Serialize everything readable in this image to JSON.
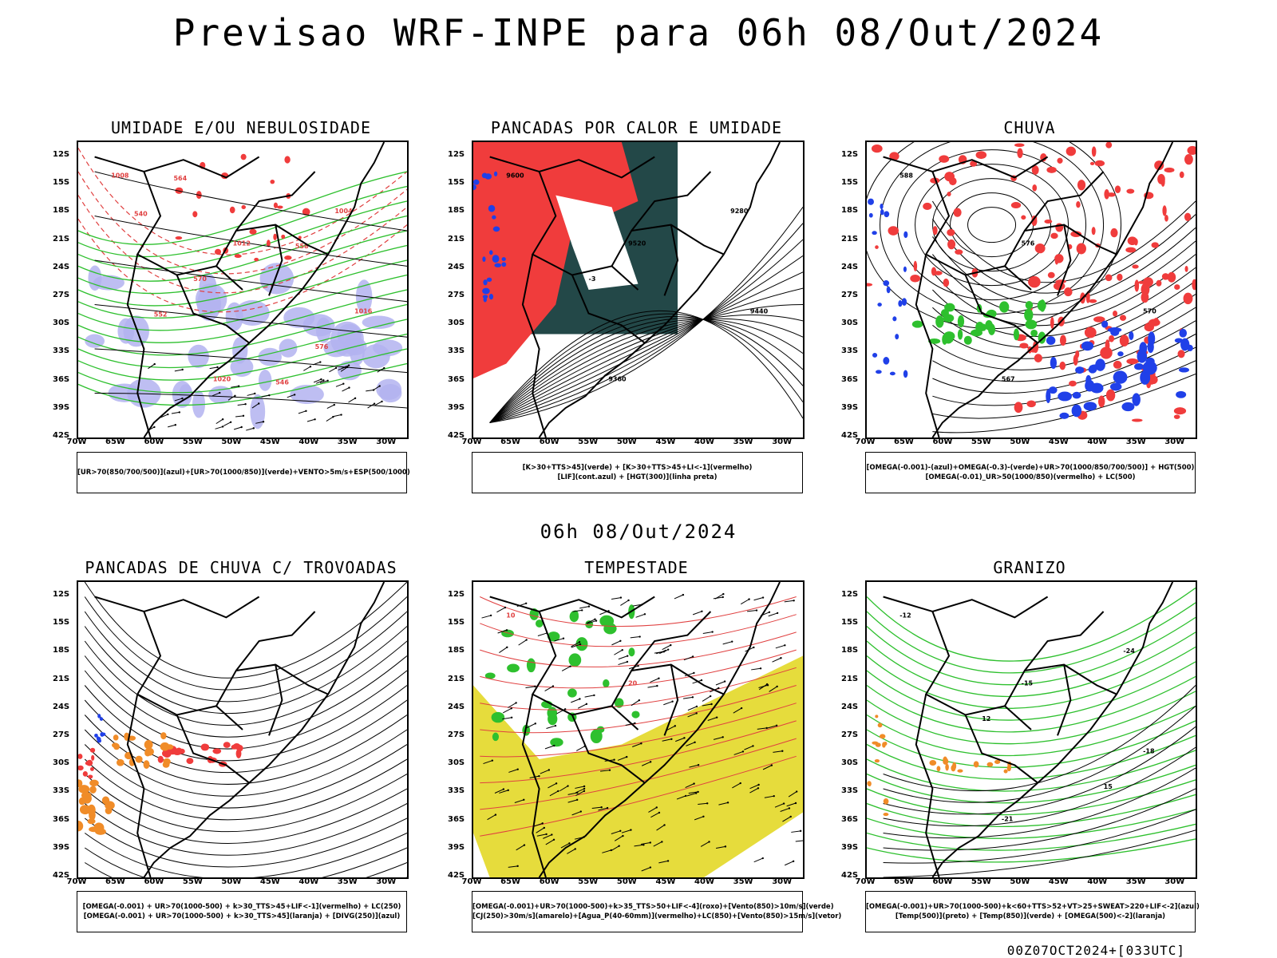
{
  "header": {
    "title": "Previsao WRF-INPE  para 06h 08/Out/2024",
    "mid_title": "06h 08/Out/2024"
  },
  "axes": {
    "lat_labels": [
      "12S",
      "15S",
      "18S",
      "21S",
      "24S",
      "27S",
      "30S",
      "33S",
      "36S",
      "39S",
      "42S"
    ],
    "lon_labels": [
      "70W",
      "65W",
      "60W",
      "55W",
      "50W",
      "45W",
      "40W",
      "35W",
      "30W"
    ]
  },
  "panels": [
    {
      "title": "UMIDADE E/OU NEBULOSIDADE",
      "legend": [
        "[UR>70(850/700/500)](azul)+[UR>70(1000/850)](verde)+VENTO>5m/s+ESP(500/1000)"
      ],
      "contour_labels": [
        "1008",
        "1012",
        "1016",
        "1020",
        "1004",
        "570",
        "576",
        "564",
        "558",
        "552",
        "546",
        "540"
      ]
    },
    {
      "title": "PANCADAS POR CALOR E UMIDADE",
      "legend": [
        "[K>30+TTS>45](verde) + [K>30+TTS>45+LI<-1](vermelho)",
        "[LIF](cont.azul) + [HGT(300)](linha preta)"
      ],
      "contour_labels": [
        "9600",
        "9520",
        "9440",
        "9360",
        "9280",
        "-3"
      ]
    },
    {
      "title": "CHUVA",
      "legend": [
        "[OMEGA(-0.001)-(azul)+OMEGA(-0.3)-(verde)+UR>70(1000/850/700/500)] + HGT(500)",
        "[OMEGA(-0.01)_UR>50(1000/850)(vermelho) + LC(500)"
      ],
      "contour_labels": [
        "588",
        "576",
        "570",
        "567"
      ]
    },
    {
      "title": "PANCADAS DE CHUVA C/ TROVOADAS",
      "legend": [
        "[OMEGA(-0.001) + UR>70(1000-500) + k>30_TTS>45+LIF<-1](vermelho) + LC(250)",
        "[OMEGA(-0.001) + UR>70(1000-500) + k>30_TTS>45](laranja) + [DIVG(250)](azul)"
      ],
      "contour_labels": []
    },
    {
      "title": "TEMPESTADE",
      "legend": [
        "[OMEGA(-0.001)+UR>70(1000-500)+k>35_TTS>50+LIF<-4](roxo)+[Vento(850)>10m/s](verde)",
        "[CJ(250)>30m/s](amarelo)+[Agua_P(40-60mm)](vermelho)+LC(850)+[Vento(850)>15m/s](vetor)"
      ],
      "contour_labels": [
        "10",
        "20"
      ]
    },
    {
      "title": "GRANIZO",
      "legend": [
        "[OMEGA(-0.001)+UR>70(1000-500)+k<60+TTS>52+VT>25+SWEAT>220+LIF<-2](azul)",
        "[Temp(500)](preto) + [Temp(850)](verde) + [OMEGA(500)<-2](laranja)"
      ],
      "contour_labels": [
        "-12",
        "-15",
        "-18",
        "-21",
        "-24",
        "12",
        "15"
      ]
    }
  ],
  "colors": {
    "blue_humidity": "#b3b3f0",
    "green": "#2ec02e",
    "red": "#f03c3c",
    "dark_teal": "#234848",
    "blue": "#2040e8",
    "orange": "#f08c28",
    "yellow": "#e6dc3c",
    "contour_black": "#000000",
    "contour_red": "#e04040"
  },
  "footer": "00Z07OCT2024+[033UTC]"
}
